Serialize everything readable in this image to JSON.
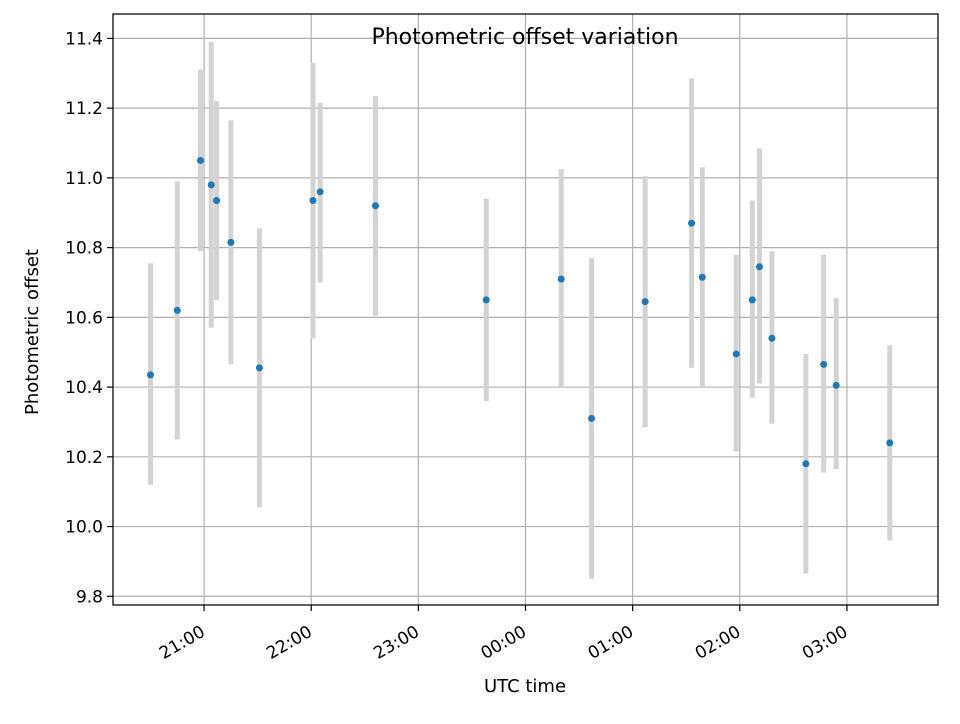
{
  "chart_data": {
    "type": "scatter",
    "title": "Photometric offset variation",
    "xlabel": "UTC time",
    "ylabel": "Photometric offset",
    "grid": true,
    "x_ticks": [
      "21:00",
      "22:00",
      "23:00",
      "00:00",
      "01:00",
      "02:00",
      "03:00"
    ],
    "y_ticks": [
      "9.8",
      "10.0",
      "10.2",
      "10.4",
      "10.6",
      "10.8",
      "11.0",
      "11.2",
      "11.4"
    ],
    "xlim": [
      "20:09",
      "03:51"
    ],
    "ylim": [
      9.775,
      11.47
    ],
    "colors": {
      "point": "#1f77b4",
      "errorbar": "#d3d3d3",
      "grid": "#b0b0b0"
    },
    "points": [
      {
        "x": "20:30",
        "y": 10.435,
        "y_low": 10.12,
        "y_high": 10.755
      },
      {
        "x": "20:45",
        "y": 10.62,
        "y_low": 10.25,
        "y_high": 10.99
      },
      {
        "x": "20:58",
        "y": 11.05,
        "y_low": 10.79,
        "y_high": 11.31
      },
      {
        "x": "21:04",
        "y": 10.98,
        "y_low": 10.57,
        "y_high": 11.39
      },
      {
        "x": "21:07",
        "y": 10.935,
        "y_low": 10.65,
        "y_high": 11.22
      },
      {
        "x": "21:15",
        "y": 10.815,
        "y_low": 10.465,
        "y_high": 11.165
      },
      {
        "x": "21:31",
        "y": 10.455,
        "y_low": 10.055,
        "y_high": 10.855
      },
      {
        "x": "22:01",
        "y": 10.935,
        "y_low": 10.54,
        "y_high": 11.33
      },
      {
        "x": "22:05",
        "y": 10.96,
        "y_low": 10.7,
        "y_high": 11.215
      },
      {
        "x": "22:36",
        "y": 10.92,
        "y_low": 10.605,
        "y_high": 11.235
      },
      {
        "x": "23:38",
        "y": 10.65,
        "y_low": 10.36,
        "y_high": 10.94
      },
      {
        "x": "00:20",
        "y": 10.71,
        "y_low": 10.4,
        "y_high": 11.025
      },
      {
        "x": "00:37",
        "y": 10.31,
        "y_low": 9.85,
        "y_high": 10.77
      },
      {
        "x": "01:07",
        "y": 10.645,
        "y_low": 10.285,
        "y_high": 11.005
      },
      {
        "x": "01:33",
        "y": 10.87,
        "y_low": 10.455,
        "y_high": 11.285
      },
      {
        "x": "01:39",
        "y": 10.715,
        "y_low": 10.4,
        "y_high": 11.03
      },
      {
        "x": "01:58",
        "y": 10.495,
        "y_low": 10.215,
        "y_high": 10.78
      },
      {
        "x": "02:07",
        "y": 10.65,
        "y_low": 10.37,
        "y_high": 10.935
      },
      {
        "x": "02:11",
        "y": 10.745,
        "y_low": 10.41,
        "y_high": 11.085
      },
      {
        "x": "02:18",
        "y": 10.54,
        "y_low": 10.295,
        "y_high": 10.79
      },
      {
        "x": "02:37",
        "y": 10.18,
        "y_low": 9.865,
        "y_high": 10.495
      },
      {
        "x": "02:47",
        "y": 10.465,
        "y_low": 10.155,
        "y_high": 10.78
      },
      {
        "x": "02:54",
        "y": 10.405,
        "y_low": 10.165,
        "y_high": 10.655
      },
      {
        "x": "03:24",
        "y": 10.24,
        "y_low": 9.96,
        "y_high": 10.52
      }
    ]
  }
}
